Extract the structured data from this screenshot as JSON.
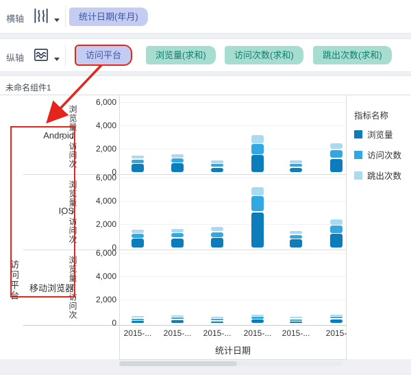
{
  "header": {
    "rows": [
      {
        "label": "横轴",
        "pills": [
          {
            "text": "统计日期(年月)",
            "type": "dimension"
          }
        ]
      },
      {
        "label": "纵轴",
        "pills": [
          {
            "text": "访问平台",
            "type": "dimension",
            "highlighted": true
          },
          {
            "text": "浏览量(求和)",
            "type": "measure"
          },
          {
            "text": "访问次数(求和)",
            "type": "measure"
          },
          {
            "text": "跳出次数(求和)",
            "type": "measure"
          }
        ]
      }
    ]
  },
  "component": {
    "title": "未命名组件1"
  },
  "chart_data": {
    "type": "bar",
    "stacked": true,
    "x_tick_labels": [
      "2015-...",
      "2015-...",
      "2015-...",
      "2015-...",
      "2015-...",
      "2015-"
    ],
    "xlabel": "统计日期",
    "y_axis_title": "浏览量/访问次⋮",
    "y_ticks": [
      "6,000",
      "4,000",
      "2,000",
      "0"
    ],
    "ylim": [
      0,
      6800
    ],
    "grid": true,
    "row_dimension": "访问平台",
    "series_names": [
      "浏览量",
      "访问次数",
      "跳出次数"
    ],
    "rows": [
      {
        "label": "Android",
        "series": [
          {
            "name": "浏览量",
            "values": [
              700,
              750,
              380,
              1450,
              380,
              1150
            ]
          },
          {
            "name": "访问次数",
            "values": [
              300,
              320,
              220,
              850,
              220,
              650
            ]
          },
          {
            "name": "跳出次数",
            "values": [
              260,
              260,
              200,
              680,
              200,
              480
            ]
          }
        ]
      },
      {
        "label": "IOS",
        "series": [
          {
            "name": "浏览量",
            "values": [
              750,
              780,
              800,
              3000,
              690,
              1150
            ]
          },
          {
            "name": "访问次数",
            "values": [
              330,
              350,
              420,
              1300,
              290,
              620
            ]
          },
          {
            "name": "跳出次数",
            "values": [
              290,
              300,
              380,
              700,
              230,
              450
            ]
          }
        ]
      },
      {
        "label": "移动浏览器",
        "series": [
          {
            "name": "浏览量",
            "values": [
              170,
              260,
              130,
              290,
              110,
              300
            ]
          },
          {
            "name": "访问次数",
            "values": [
              80,
              120,
              80,
              140,
              70,
              130
            ]
          },
          {
            "name": "跳出次数",
            "values": [
              60,
              90,
              70,
              100,
              80,
              90
            ]
          }
        ]
      }
    ],
    "legend": {
      "title": "指标名称",
      "position": "right",
      "items": [
        {
          "label": "浏览量",
          "color": "#0d7cba"
        },
        {
          "label": "访问次数",
          "color": "#2fa8e4"
        },
        {
          "label": "跳出次数",
          "color": "#a9daf2"
        }
      ]
    }
  },
  "colors": {
    "dimension_pill": "#c4cdf1",
    "dimension_text": "#3d54a8",
    "measure_pill": "#a7ddd1",
    "measure_text": "#117d6b",
    "highlight_red": "#e5251c",
    "series_dark": "#0d7cba",
    "series_medium": "#2fa8e4",
    "series_light": "#a9daf2"
  }
}
